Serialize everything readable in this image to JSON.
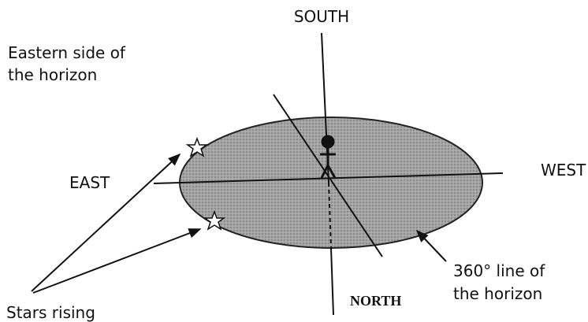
{
  "labels": {
    "south": "SOUTH",
    "eastern_side": [
      "Eastern side of",
      "the horizon"
    ],
    "east": "EAST",
    "west": "WEST",
    "north": "NORTH",
    "horizon_line": [
      "360° line of",
      "the horizon"
    ],
    "stars_rising": "Stars rising"
  }
}
